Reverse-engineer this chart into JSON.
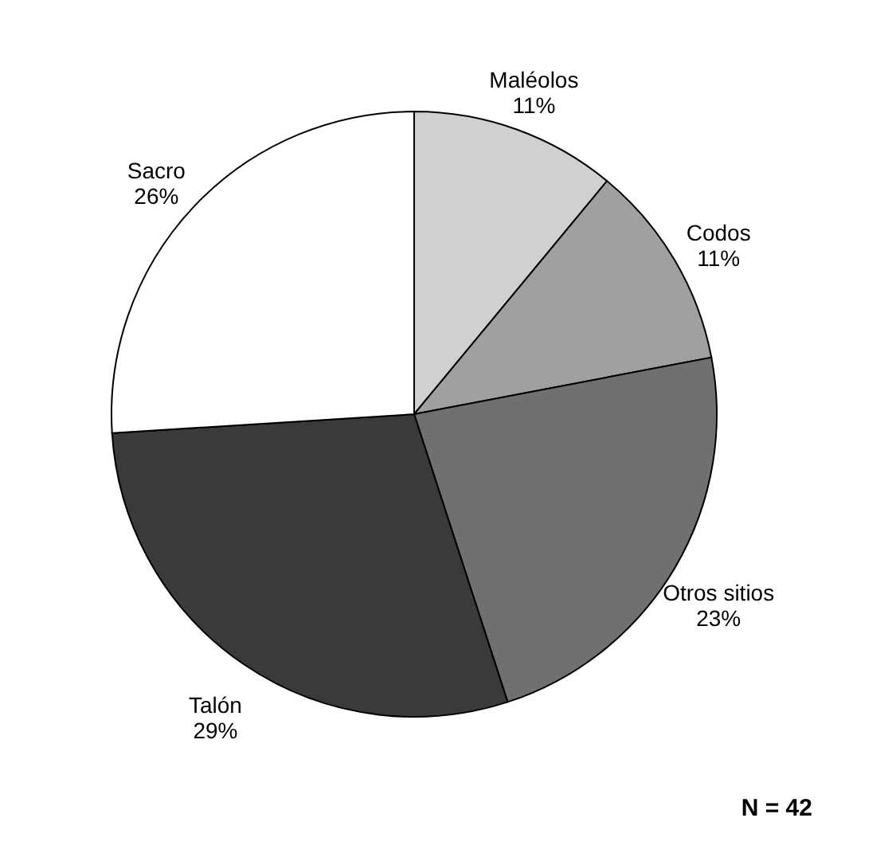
{
  "chart_data": {
    "type": "pie",
    "categories": [
      "Maléolos",
      "Codos",
      "Otros sitios",
      "Talón",
      "Sacro"
    ],
    "values": [
      11,
      11,
      23,
      29,
      26
    ],
    "value_labels": [
      "11%",
      "11%",
      "23%",
      "29%",
      "26%"
    ],
    "colors": [
      "#d0d0d0",
      "#a0a0a0",
      "#707070",
      "#3a3a3a",
      "#ffffff"
    ],
    "annotations": [
      "N = 42"
    ],
    "legend": false
  }
}
